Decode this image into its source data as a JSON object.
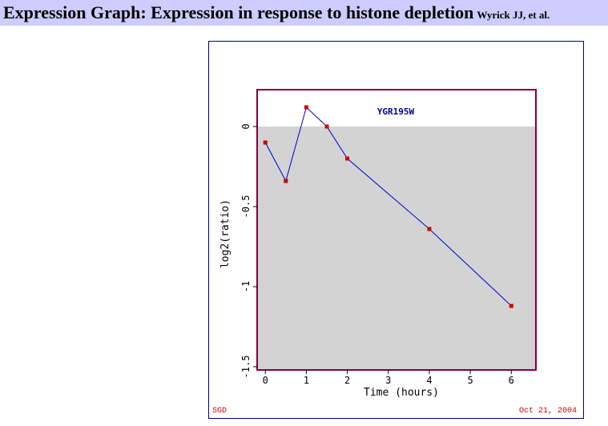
{
  "header": {
    "title": "Expression Graph: Expression in response to histone depletion",
    "authors": "Wyrick JJ, et al."
  },
  "footer": {
    "source": "SGD",
    "date": "Oct 21, 2004"
  },
  "colors": {
    "header_bg": "#ccccff",
    "plot_bg": "#d3d3d3",
    "plot_border": "#800040",
    "line": "#0000cc",
    "marker": "#cc0000",
    "gene_label": "#000099"
  },
  "chart_data": {
    "type": "line",
    "gene": "YGR195W",
    "xlabel": "Time (hours)",
    "ylabel": "log2(ratio)",
    "xlim": [
      -0.2,
      6.6
    ],
    "ylim": [
      -1.52,
      0.23
    ],
    "x_ticks": [
      0,
      1,
      2,
      3,
      4,
      5,
      6
    ],
    "y_ticks": [
      0,
      -0.5,
      -1,
      -1.5
    ],
    "x_tick_labels": [
      "0",
      "1",
      "2",
      "3",
      "4",
      "5",
      "6"
    ],
    "y_tick_labels": [
      "0",
      "-0.5",
      "-1",
      "-1.5"
    ],
    "series": [
      {
        "x": [
          0,
          0.5,
          1,
          1.5,
          2,
          4,
          6
        ],
        "y": [
          -0.1,
          -0.34,
          0.12,
          0.0,
          -0.2,
          -0.64,
          -1.12
        ]
      }
    ]
  }
}
